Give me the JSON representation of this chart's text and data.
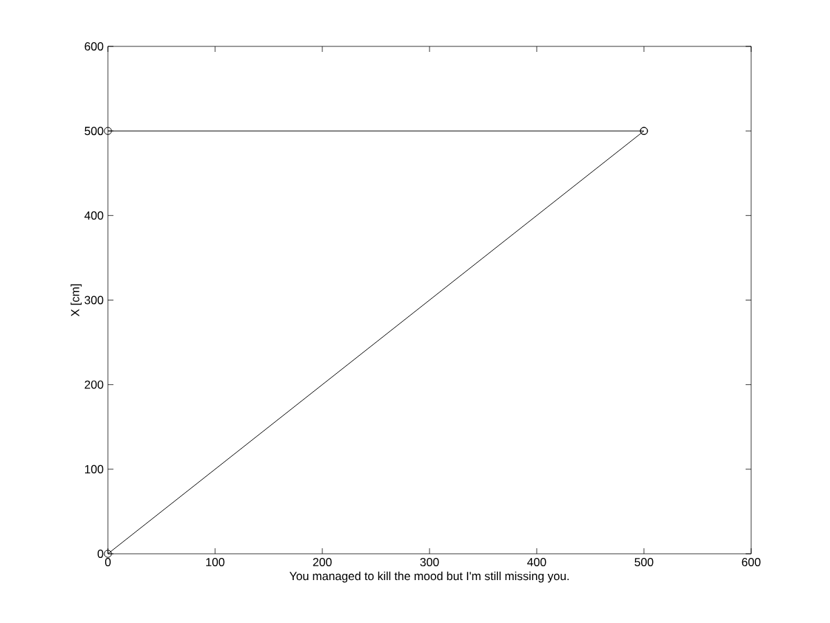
{
  "chart_data": {
    "type": "line",
    "x": [
      0,
      500
    ],
    "series": [
      {
        "color": "#000000",
        "values": [
          0,
          500
        ]
      },
      {
        "color": "#000000",
        "values": [
          500,
          500
        ]
      }
    ],
    "xlim": [
      0,
      600
    ],
    "ylim": [
      0,
      600
    ],
    "xticks": [
      0,
      100,
      200,
      300,
      400,
      500,
      600
    ],
    "yticks": [
      0,
      100,
      200,
      300,
      400,
      500,
      600
    ],
    "xlabel": "You managed to kill the mood but I'm still missing you.",
    "ylabel": "X [cm]",
    "marker": "circle",
    "line_style": "solid"
  }
}
